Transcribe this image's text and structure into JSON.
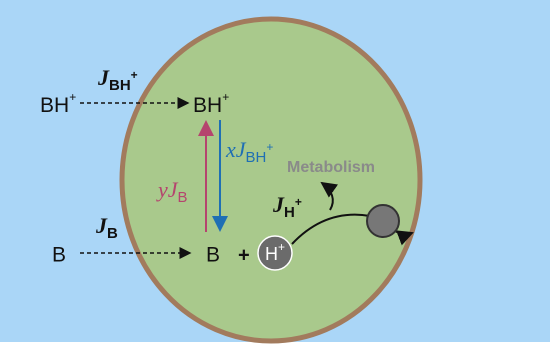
{
  "outside": {
    "bh": {
      "base": "BH",
      "sup": "+"
    },
    "b": "B"
  },
  "inside": {
    "bh": {
      "base": "BH",
      "sup": "+"
    },
    "b": "B",
    "plus": "+",
    "proton": {
      "base": "H",
      "sup": "+"
    }
  },
  "fluxes": {
    "j_bh": {
      "symbol": "J",
      "sub": "BH",
      "sup": "+"
    },
    "j_b": {
      "symbol": "J",
      "sub": "B"
    },
    "x_j_bh": {
      "coef": "x",
      "symbol": "J",
      "sub": "BH",
      "sup": "+"
    },
    "y_j_b": {
      "coef": "y",
      "symbol": "J",
      "sub": "B"
    },
    "j_h": {
      "symbol": "J",
      "sub": "H",
      "sup": "+"
    }
  },
  "metabolism": "Metabolism"
}
